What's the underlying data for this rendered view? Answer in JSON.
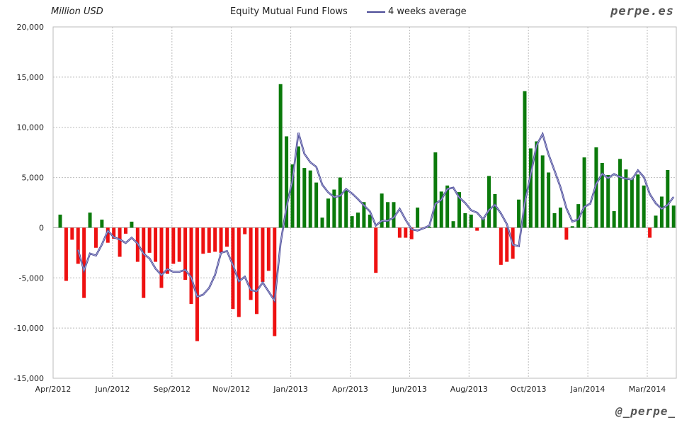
{
  "header": {
    "unit_label": "Million USD",
    "title": "Equity Mutual Fund Flows",
    "legend_label": "4 weeks average",
    "brand": "perpe.es",
    "handle": "@_perpe_"
  },
  "colors": {
    "positive": "#0b7a0b",
    "negative": "#ee1111",
    "average_line": "#4a4a96"
  },
  "chart_data": {
    "type": "bar",
    "title": "Equity Mutual Fund Flows",
    "ylabel": "Million USD",
    "ylim": [
      -15000,
      20000
    ],
    "y_ticks": [
      "-15,000",
      "-10,000",
      "-5,000",
      "0",
      "5,000",
      "10,000",
      "15,000",
      "20,000"
    ],
    "y_tick_values": [
      -15000,
      -10000,
      -5000,
      0,
      5000,
      10000,
      15000,
      20000
    ],
    "x_tick_labels": [
      "Apr/2012",
      "Jun/2012",
      "Sep/2012",
      "Nov/2012",
      "Jan/2013",
      "Apr/2013",
      "Jun/2013",
      "Aug/2013",
      "Oct/2013",
      "Jan/2014",
      "Mar/2014"
    ],
    "grid": true,
    "legend_placement": "top-center",
    "series": [
      {
        "type": "bar",
        "values": [
          1300,
          -5300,
          -1200,
          -3600,
          -7000,
          1500,
          -2000,
          800,
          -1500,
          -1100,
          -2900,
          -600,
          600,
          -3400,
          -7000,
          -2500,
          -3400,
          -6000,
          -4600,
          -3600,
          -3400,
          -5200,
          -7600,
          -11300,
          -2600,
          -2500,
          -2400,
          -2500,
          -1900,
          -8100,
          -8900,
          -650,
          -7200,
          -8600,
          -5400,
          -4300,
          -10800,
          14300,
          9100,
          6300,
          8100,
          5950,
          5700,
          4500,
          1000,
          2900,
          3800,
          5000,
          3700,
          1150,
          1500,
          2550,
          1300,
          -4500,
          3400,
          2550,
          2550,
          -1000,
          -1000,
          -1150,
          2000,
          -100,
          100,
          7500,
          3600,
          4200,
          650,
          3550,
          1450,
          1300,
          -300,
          900,
          5150,
          3350,
          -3700,
          -3400,
          -3100,
          2800,
          13600,
          7900,
          8600,
          7200,
          5500,
          1450,
          2000,
          -1200,
          150,
          2350,
          7000,
          50,
          8000,
          6450,
          5250,
          1650,
          6850,
          5800,
          4900,
          5300,
          4200,
          -1000,
          1200,
          3100,
          5750,
          2200
        ]
      },
      {
        "type": "line",
        "name": "4 weeks average",
        "window": 4
      }
    ]
  }
}
